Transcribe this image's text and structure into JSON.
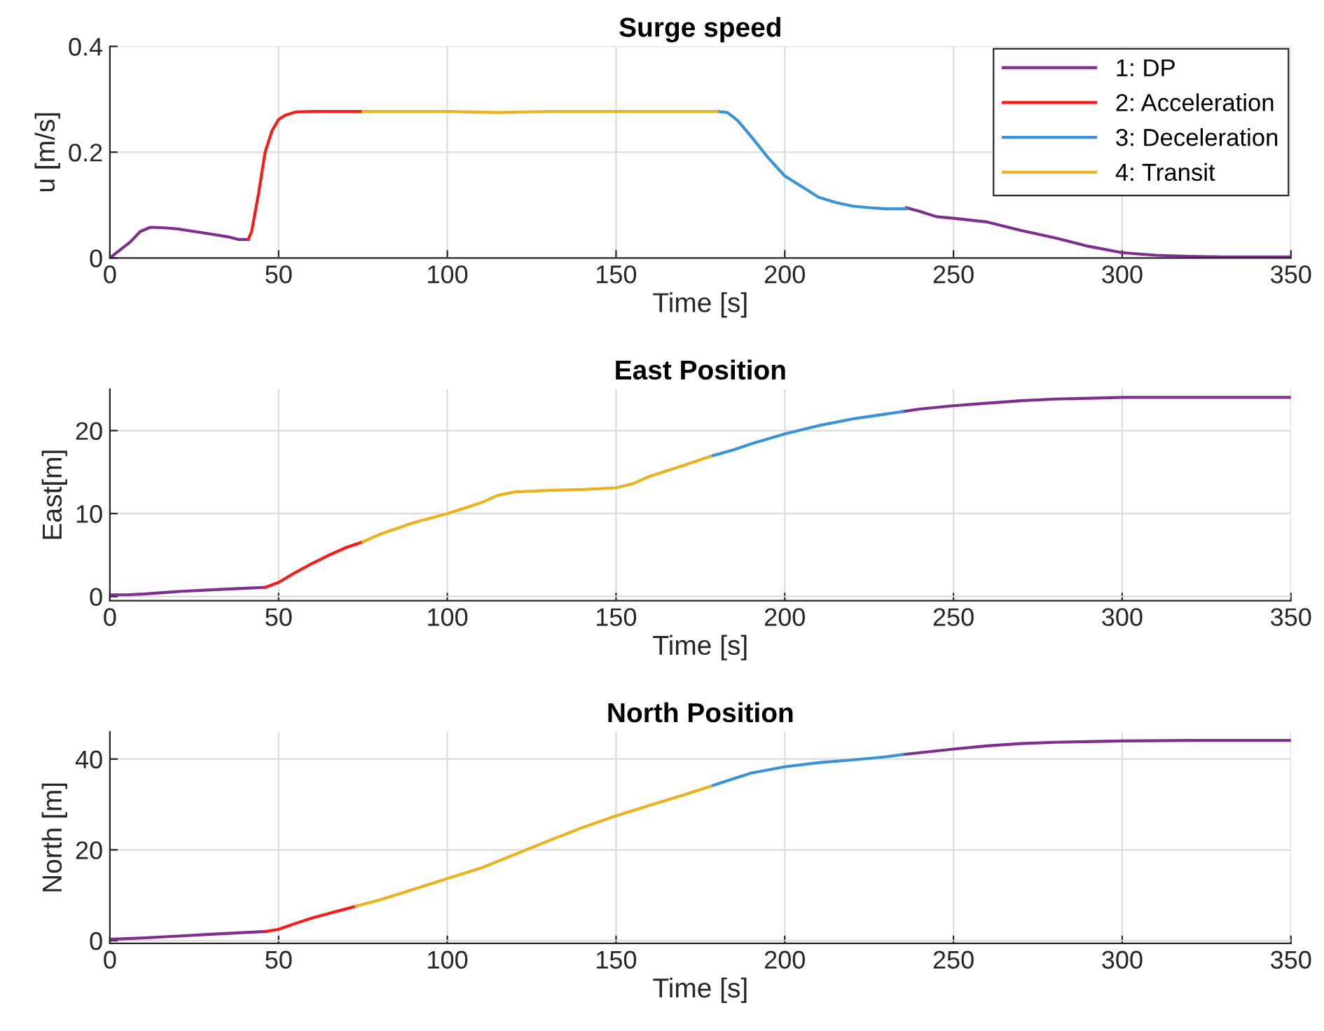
{
  "chart_data": [
    {
      "type": "line",
      "title": "Surge speed",
      "xlabel": "Time [s]",
      "ylabel": "u [m/s]",
      "xlim": [
        0,
        350
      ],
      "xticks": [
        0,
        50,
        100,
        150,
        200,
        250,
        300,
        350
      ],
      "ylim": [
        0,
        0.4
      ],
      "yticks": [
        0,
        0.2,
        0.4
      ],
      "grid": true,
      "legend": "top right",
      "series": [
        {
          "name": "1: DP",
          "color": "#7e2f8e",
          "x": [
            0,
            3,
            6,
            9,
            12,
            16,
            20,
            25,
            30,
            35,
            38,
            41
          ],
          "values": [
            0,
            0.015,
            0.03,
            0.05,
            0.058,
            0.057,
            0.055,
            0.05,
            0.045,
            0.04,
            0.035,
            0.035
          ]
        },
        {
          "color": "#7e2f8e",
          "x": [
            236,
            240,
            245,
            250,
            260,
            270,
            280,
            290,
            300,
            310,
            320,
            330,
            340,
            350
          ],
          "values": [
            0.095,
            0.088,
            0.078,
            0.075,
            0.068,
            0.052,
            0.038,
            0.022,
            0.01,
            0.005,
            0.003,
            0.002,
            0.002,
            0.002
          ]
        },
        {
          "name": "2: Acceleration",
          "color": "#ff1a1a",
          "x": [
            41,
            42,
            44,
            46,
            48,
            50,
            52,
            55,
            60,
            65,
            70,
            75
          ],
          "values": [
            0.035,
            0.05,
            0.12,
            0.2,
            0.24,
            0.262,
            0.27,
            0.276,
            0.277,
            0.277,
            0.277,
            0.277
          ]
        },
        {
          "name": "3: Deceleration",
          "color": "#3a93d6",
          "x": [
            180,
            183,
            186,
            190,
            195,
            200,
            205,
            210,
            215,
            220,
            225,
            230,
            236
          ],
          "values": [
            0.277,
            0.275,
            0.26,
            0.23,
            0.19,
            0.155,
            0.135,
            0.115,
            0.105,
            0.098,
            0.095,
            0.093,
            0.093
          ]
        },
        {
          "name": "4: Transit",
          "color": "#edb120",
          "x": [
            75,
            100,
            115,
            130,
            150,
            170,
            180
          ],
          "values": [
            0.277,
            0.277,
            0.275,
            0.277,
            0.277,
            0.277,
            0.277
          ]
        }
      ]
    },
    {
      "type": "line",
      "title": "East Position",
      "xlabel": "Time [s]",
      "ylabel": "East[m]",
      "xlim": [
        0,
        350
      ],
      "xticks": [
        0,
        50,
        100,
        150,
        200,
        250,
        300,
        350
      ],
      "ylim": [
        -0.5,
        25
      ],
      "yticks": [
        0,
        10,
        20
      ],
      "grid": true,
      "series": [
        {
          "color": "#7e2f8e",
          "x": [
            0,
            5,
            10,
            20,
            30,
            40,
            46
          ],
          "values": [
            0.2,
            0.2,
            0.3,
            0.6,
            0.8,
            1.0,
            1.1
          ]
        },
        {
          "color": "#7e2f8e",
          "x": [
            235,
            240,
            250,
            260,
            270,
            280,
            300,
            320,
            350
          ],
          "values": [
            22.3,
            22.6,
            23.0,
            23.3,
            23.6,
            23.8,
            24.0,
            24.0,
            24.0
          ]
        },
        {
          "color": "#ff1a1a",
          "x": [
            46,
            50,
            55,
            60,
            65,
            70,
            75
          ],
          "values": [
            1.1,
            1.7,
            2.9,
            4.0,
            5.0,
            5.9,
            6.6
          ]
        },
        {
          "color": "#3a93d6",
          "x": [
            178,
            185,
            190,
            200,
            210,
            220,
            230,
            235
          ],
          "values": [
            16.9,
            17.7,
            18.4,
            19.6,
            20.6,
            21.4,
            22.0,
            22.3
          ]
        },
        {
          "color": "#edb120",
          "x": [
            75,
            80,
            90,
            100,
            110,
            115,
            120,
            130,
            140,
            150,
            155,
            160,
            170,
            178
          ],
          "values": [
            6.6,
            7.5,
            8.9,
            10.0,
            11.3,
            12.2,
            12.6,
            12.8,
            12.9,
            13.1,
            13.6,
            14.5,
            15.8,
            16.9
          ]
        }
      ]
    },
    {
      "type": "line",
      "title": "North Position",
      "xlabel": "Time [s]",
      "ylabel": "North [m]",
      "xlim": [
        0,
        350
      ],
      "xticks": [
        0,
        50,
        100,
        150,
        200,
        250,
        300,
        350
      ],
      "ylim": [
        -0.6,
        46
      ],
      "yticks": [
        0,
        20,
        40
      ],
      "grid": true,
      "series": [
        {
          "color": "#7e2f8e",
          "x": [
            0,
            10,
            20,
            30,
            40,
            46
          ],
          "values": [
            0.3,
            0.6,
            1.0,
            1.4,
            1.8,
            2.0
          ]
        },
        {
          "color": "#7e2f8e",
          "x": [
            235,
            250,
            260,
            270,
            280,
            300,
            320,
            350
          ],
          "values": [
            41.0,
            42.2,
            42.9,
            43.4,
            43.7,
            44.0,
            44.1,
            44.1
          ]
        },
        {
          "color": "#ff1a1a",
          "x": [
            46,
            50,
            55,
            60,
            65,
            70,
            73
          ],
          "values": [
            2.0,
            2.5,
            3.8,
            5.0,
            6.0,
            7.0,
            7.6
          ]
        },
        {
          "color": "#3a93d6",
          "x": [
            178,
            185,
            190,
            200,
            210,
            220,
            230,
            235
          ],
          "values": [
            34.0,
            35.7,
            36.9,
            38.3,
            39.2,
            39.8,
            40.5,
            41.0
          ]
        },
        {
          "color": "#edb120",
          "x": [
            73,
            80,
            90,
            100,
            110,
            120,
            130,
            140,
            150,
            160,
            170,
            178
          ],
          "values": [
            7.6,
            9.0,
            11.3,
            13.7,
            16.0,
            19.0,
            22.0,
            24.9,
            27.5,
            29.8,
            32.1,
            34.0
          ]
        }
      ]
    }
  ]
}
